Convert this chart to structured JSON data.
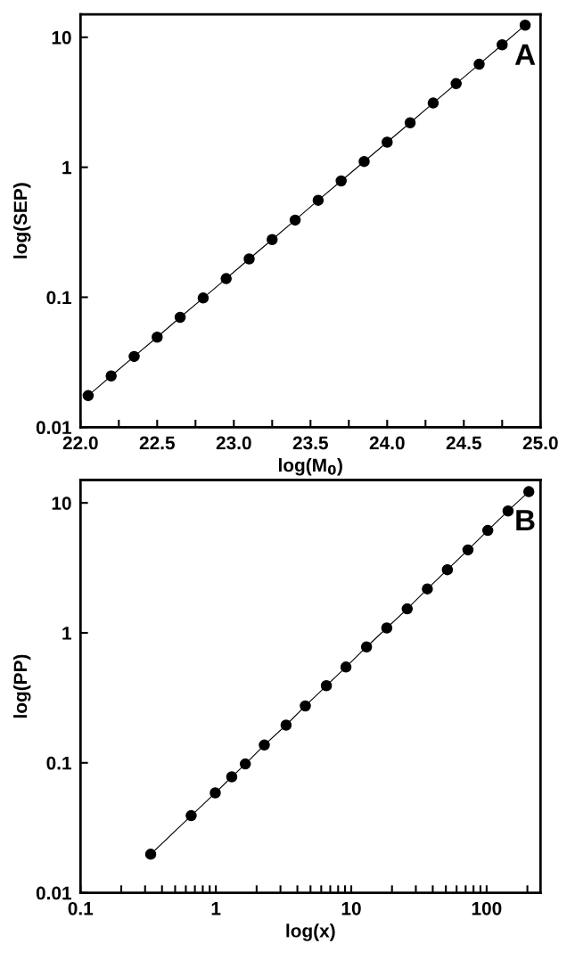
{
  "chart_data": [
    {
      "type": "line",
      "xlabel": "log(M$_{0}$)",
      "ylabel": "log(SEP)",
      "annotations": [
        "A"
      ],
      "log": "y",
      "marker": "circle",
      "line_style": "solid",
      "grid": false,
      "legend": false,
      "x": [
        22.05,
        22.2,
        22.35,
        22.5,
        22.65,
        22.8,
        22.95,
        23.1,
        23.25,
        23.4,
        23.55,
        23.7,
        23.85,
        24.0,
        24.15,
        24.3,
        24.45,
        24.6,
        24.75,
        24.9
      ],
      "series": [
        {
          "color": "#000000",
          "values": [
            0.0175,
            0.0248,
            0.035,
            0.0493,
            0.07,
            0.0986,
            0.139,
            0.197,
            0.278,
            0.392,
            0.557,
            0.785,
            1.107,
            1.56,
            2.2,
            3.12,
            4.4,
            6.2,
            8.75,
            12.4
          ]
        }
      ],
      "xlim": [
        22.0,
        25.0
      ],
      "xticks": [
        {
          "value": 22.0,
          "label": "22.0"
        },
        {
          "value": 22.25,
          "label": null
        },
        {
          "value": 22.5,
          "label": "22.5"
        },
        {
          "value": 22.75,
          "label": null
        },
        {
          "value": 23.0,
          "label": "23.0"
        },
        {
          "value": 23.25,
          "label": null
        },
        {
          "value": 23.5,
          "label": "23.5"
        },
        {
          "value": 23.75,
          "label": null
        },
        {
          "value": 24.0,
          "label": "24.0"
        },
        {
          "value": 24.25,
          "label": null
        },
        {
          "value": 24.5,
          "label": "24.5"
        },
        {
          "value": 24.75,
          "label": null
        },
        {
          "value": 25.0,
          "label": "25.0"
        }
      ],
      "ylim": [
        0.01,
        15
      ],
      "yticks": [
        0.01,
        0.1,
        1,
        10
      ]
    },
    {
      "type": "line",
      "xlabel": "log(x)",
      "ylabel": "log(PP)",
      "annotations": [
        "B"
      ],
      "log": "xy",
      "marker": "circle",
      "line_style": "solid",
      "grid": false,
      "legend": false,
      "x": [
        0.33,
        0.657,
        0.99,
        1.31,
        1.65,
        2.28,
        3.3,
        4.58,
        6.55,
        9.14,
        12.97,
        18.3,
        25.9,
        36.5,
        51.3,
        72.8,
        102,
        144,
        205
      ],
      "series": [
        {
          "color": "#000000",
          "values": [
            0.0198,
            0.0392,
            0.0587,
            0.078,
            0.098,
            0.137,
            0.195,
            0.274,
            0.392,
            0.546,
            0.78,
            1.09,
            1.53,
            2.18,
            3.06,
            4.35,
            6.14,
            8.67,
            12.2
          ]
        }
      ],
      "xlim": [
        0.1,
        250
      ],
      "xticks": [
        0.1,
        {
          "value": 0.2,
          "label": null
        },
        {
          "value": 0.3,
          "label": null
        },
        {
          "value": 0.4,
          "label": null
        },
        {
          "value": 0.5,
          "label": null
        },
        {
          "value": 0.6,
          "label": null
        },
        {
          "value": 0.7,
          "label": null
        },
        {
          "value": 0.8,
          "label": null
        },
        {
          "value": 0.9,
          "label": null
        },
        1,
        {
          "value": 2,
          "label": null
        },
        {
          "value": 3,
          "label": null
        },
        {
          "value": 4,
          "label": null
        },
        {
          "value": 5,
          "label": null
        },
        {
          "value": 6,
          "label": null
        },
        {
          "value": 7,
          "label": null
        },
        {
          "value": 8,
          "label": null
        },
        {
          "value": 9,
          "label": null
        },
        10,
        {
          "value": 20,
          "label": null
        },
        {
          "value": 30,
          "label": null
        },
        {
          "value": 40,
          "label": null
        },
        {
          "value": 50,
          "label": null
        },
        {
          "value": 60,
          "label": null
        },
        {
          "value": 70,
          "label": null
        },
        {
          "value": 80,
          "label": null
        },
        {
          "value": 90,
          "label": null
        },
        100,
        {
          "value": 200,
          "label": null
        }
      ],
      "ylim": [
        0.01,
        15
      ],
      "yticks": [
        0.01,
        0.1,
        1,
        10
      ]
    }
  ]
}
